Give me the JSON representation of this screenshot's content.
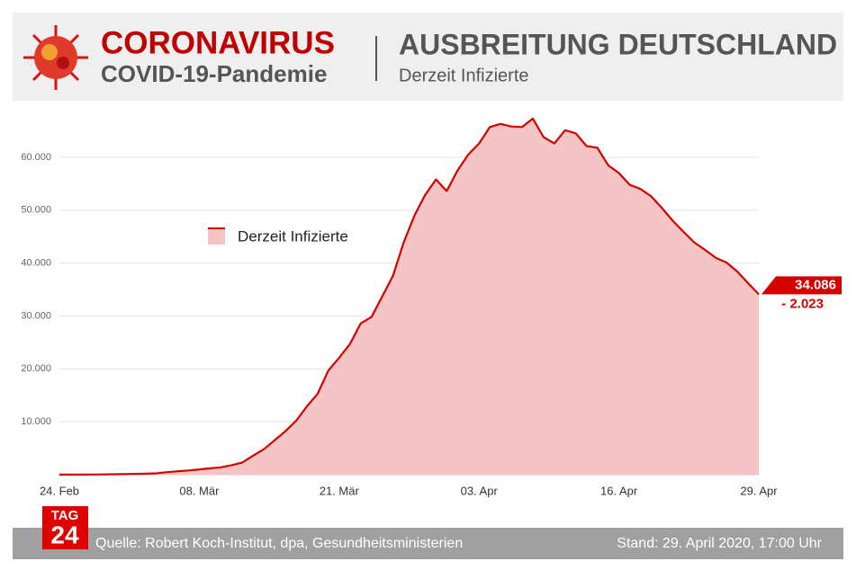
{
  "header": {
    "title": "CORONAVIRUS",
    "subtitle": "COVID-19-Pandemie"
  },
  "footer": {
    "logo_top": "TAG",
    "logo_bottom": "24",
    "source": "Quelle: Robert Koch-Institut, dpa, Gesundheitsministerien",
    "stand": "Stand: 29. April 2020, 17:00 Uhr"
  },
  "chart_data": {
    "type": "area",
    "title": "AUSBREITUNG DEUTSCHLAND",
    "subtitle": "Derzeit Infizierte",
    "categories": [
      "24. Feb",
      null,
      null,
      null,
      null,
      null,
      null,
      null,
      null,
      null,
      null,
      null,
      null,
      "08. Mär",
      null,
      null,
      null,
      null,
      null,
      null,
      null,
      null,
      null,
      null,
      null,
      null,
      "21. Mär",
      null,
      null,
      null,
      null,
      null,
      null,
      null,
      null,
      null,
      null,
      null,
      null,
      "03. Apr",
      null,
      null,
      null,
      null,
      null,
      null,
      null,
      null,
      null,
      null,
      null,
      null,
      "16. Apr",
      null,
      null,
      null,
      null,
      null,
      null,
      null,
      null,
      null,
      null,
      null,
      null,
      "29. Apr"
    ],
    "series": [
      {
        "name": "Derzeit Infizierte",
        "color": "#d40000",
        "fill": "#f5c4c4",
        "values": [
          16,
          16,
          20,
          30,
          50,
          80,
          120,
          150,
          180,
          250,
          480,
          650,
          800,
          1000,
          1200,
          1400,
          1800,
          2300,
          3600,
          4800,
          6500,
          8200,
          10200,
          12900,
          15300,
          19700,
          22100,
          24700,
          28600,
          29800,
          33700,
          37600,
          43900,
          49000,
          52900,
          55800,
          53600,
          57500,
          60500,
          62600,
          65700,
          66300,
          65800,
          65700,
          67300,
          63800,
          62600,
          65100,
          64500,
          62100,
          61800,
          58500,
          57000,
          54800,
          54000,
          52600,
          50400,
          48000,
          45900,
          43900,
          42500,
          41000,
          40100,
          38400,
          36200,
          34086
        ],
        "value_labels": [
          null,
          null,
          null,
          null,
          null,
          null,
          null,
          null,
          null,
          null,
          null,
          null,
          null,
          null,
          null,
          null,
          null,
          null,
          null,
          null,
          null,
          null,
          null,
          null,
          null,
          null,
          null,
          null,
          null,
          null,
          null,
          null,
          null,
          null,
          null,
          null,
          null,
          null,
          null,
          null,
          null,
          null,
          null,
          null,
          null,
          null,
          null,
          null,
          null,
          null,
          null,
          null,
          null,
          null,
          null,
          null,
          null,
          null,
          null,
          null,
          null,
          null,
          null,
          null,
          null,
          "34.086"
        ]
      }
    ],
    "annotations": [
      {
        "text": "- 2.023",
        "value": -2023
      }
    ],
    "ylim": [
      0,
      70000
    ],
    "yticks": [
      {
        "value": 10000,
        "label": "10.000"
      },
      {
        "value": 20000,
        "label": "20.000"
      },
      {
        "value": 30000,
        "label": "30.000"
      },
      {
        "value": 40000,
        "label": "40.000"
      },
      {
        "value": 50000,
        "label": "50.000"
      },
      {
        "value": 60000,
        "label": "60.000"
      }
    ],
    "grid": true,
    "legend": "upper left"
  }
}
